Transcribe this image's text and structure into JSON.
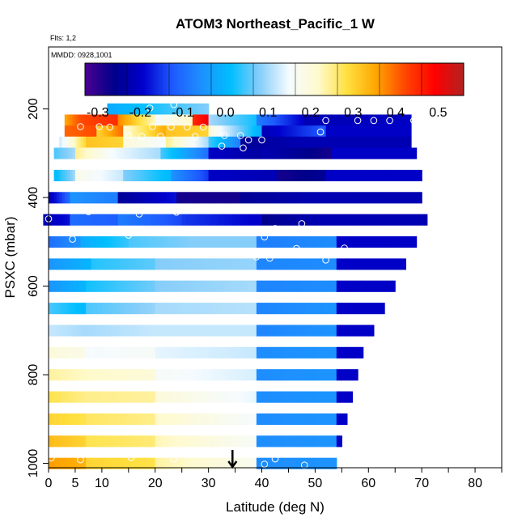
{
  "chart_data": {
    "type": "heatmap",
    "title": "ATOM3 Northeast_Pacific_1 W",
    "flights_text": "Flts: 1,2",
    "dates_text": "MMDD: 0928,1001",
    "xlabel": "Latitude (deg N)",
    "ylabel": "PSXC (mbar)",
    "xlim": [
      0,
      85
    ],
    "ylim": [
      1010,
      60
    ],
    "x_ticks": [
      0,
      5,
      10,
      20,
      30,
      40,
      50,
      60,
      70,
      80
    ],
    "y_ticks": [
      200,
      400,
      600,
      800,
      1000
    ],
    "colorbar": {
      "range": [
        -0.33,
        0.56
      ],
      "ticks": [
        -0.3,
        -0.2,
        -0.1,
        0.0,
        0.1,
        0.2,
        0.3,
        0.4,
        0.5
      ],
      "tick_labels": [
        "-0.3",
        "-0.2",
        "-0.1",
        "0.0",
        "0.1",
        "0.2",
        "0.3",
        "0.4",
        "0.5"
      ],
      "colors": [
        "#4b0092",
        "#00008b",
        "#0000cd",
        "#1e5aff",
        "#1e90ff",
        "#00bfff",
        "#87cefa",
        "#f5fbff",
        "#fffacd",
        "#ffe040",
        "#ffa500",
        "#ff4500",
        "#ff0000",
        "#b22222"
      ]
    },
    "arrow_latitude": 34.5,
    "rows": [
      {
        "p": 200,
        "segments": [
          [
            11,
            30,
            -0.02,
            0.08
          ]
        ]
      },
      {
        "p": 225,
        "segments": [
          [
            3,
            6,
            0.35,
            0.42
          ],
          [
            6,
            13,
            0.42,
            0.45
          ],
          [
            13,
            20,
            0.38,
            0.22
          ],
          [
            20,
            27,
            0.15,
            0.22
          ],
          [
            27,
            30,
            0.45,
            0.5
          ],
          [
            30,
            39,
            0.1,
            0.02
          ],
          [
            39,
            48,
            -0.08,
            -0.2
          ],
          [
            48,
            68,
            -0.22,
            -0.2
          ]
        ]
      },
      {
        "p": 250,
        "segments": [
          [
            3,
            9,
            0.4,
            0.42
          ],
          [
            9,
            14,
            0.3,
            0.4
          ],
          [
            14,
            22,
            0.2,
            0.35
          ],
          [
            22,
            30,
            0.32,
            0.3
          ],
          [
            30,
            40,
            0.2,
            -0.02
          ],
          [
            40,
            52,
            -0.22,
            -0.12
          ],
          [
            52,
            68,
            -0.2,
            -0.2
          ]
        ]
      },
      {
        "p": 275,
        "segments": [
          [
            2,
            7,
            0.12,
            0.3
          ],
          [
            7,
            14,
            0.32,
            0.3
          ],
          [
            14,
            22,
            0.2,
            0.15
          ],
          [
            22,
            30,
            0.25,
            0.1
          ],
          [
            30,
            36,
            0.05,
            -0.08
          ],
          [
            36,
            48,
            -0.25,
            -0.22
          ],
          [
            48,
            68,
            -0.22,
            -0.22
          ]
        ]
      },
      {
        "p": 300,
        "segments": [
          [
            1,
            5,
            0.05,
            0.1
          ],
          [
            5,
            12,
            0.25,
            0.15
          ],
          [
            12,
            21,
            0.15,
            0.1
          ],
          [
            21,
            30,
            0.05,
            -0.1
          ],
          [
            30,
            40,
            -0.2,
            -0.24
          ],
          [
            40,
            53,
            -0.22,
            -0.28
          ],
          [
            53,
            69,
            -0.2,
            -0.2
          ]
        ]
      },
      {
        "p": 350,
        "segments": [
          [
            1,
            5,
            0.0,
            0.1
          ],
          [
            5,
            14,
            0.18,
            0.12
          ],
          [
            14,
            23,
            0.08,
            0.0
          ],
          [
            23,
            30,
            -0.05,
            -0.15
          ],
          [
            30,
            43,
            -0.2,
            -0.22
          ],
          [
            43,
            52,
            -0.28,
            -0.25
          ],
          [
            52,
            70,
            -0.2,
            -0.2
          ]
        ]
      },
      {
        "p": 400,
        "segments": [
          [
            0,
            4,
            -0.22,
            -0.1
          ],
          [
            4,
            13,
            -0.05,
            -0.08
          ],
          [
            13,
            24,
            -0.25,
            -0.18
          ],
          [
            24,
            36,
            -0.28,
            -0.28
          ],
          [
            36,
            51,
            -0.25,
            -0.22
          ],
          [
            51,
            70,
            -0.22,
            -0.22
          ]
        ]
      },
      {
        "p": 450,
        "segments": [
          [
            -1,
            4,
            -0.22,
            -0.18
          ],
          [
            4,
            13,
            -0.1,
            -0.12
          ],
          [
            13,
            25,
            -0.08,
            -0.14
          ],
          [
            25,
            40,
            -0.15,
            -0.2
          ],
          [
            40,
            51,
            -0.26,
            -0.22
          ],
          [
            51,
            71,
            -0.22,
            -0.22
          ]
        ]
      },
      {
        "p": 500,
        "segments": [
          [
            0,
            6,
            -0.1,
            -0.05
          ],
          [
            6,
            15,
            -0.02,
            0.04
          ],
          [
            15,
            27,
            0.05,
            0.08
          ],
          [
            27,
            39,
            0.08,
            0.08
          ],
          [
            39,
            54,
            -0.08,
            -0.06
          ],
          [
            54,
            69,
            -0.2,
            -0.2
          ]
        ]
      },
      {
        "p": 550,
        "segments": [
          [
            0,
            8,
            -0.05,
            0.0
          ],
          [
            8,
            20,
            0.03,
            0.06
          ],
          [
            20,
            39,
            0.08,
            0.09
          ],
          [
            39,
            54,
            -0.07,
            -0.06
          ],
          [
            54,
            67,
            -0.2,
            -0.2
          ]
        ]
      },
      {
        "p": 600,
        "segments": [
          [
            0,
            7,
            -0.05,
            0.0
          ],
          [
            7,
            20,
            0.02,
            0.07
          ],
          [
            20,
            39,
            0.08,
            0.1
          ],
          [
            39,
            54,
            -0.07,
            -0.06
          ],
          [
            54,
            65,
            -0.2,
            -0.2
          ]
        ]
      },
      {
        "p": 650,
        "segments": [
          [
            0,
            7,
            0.05,
            0.0
          ],
          [
            7,
            20,
            0.05,
            0.09
          ],
          [
            20,
            39,
            0.1,
            0.11
          ],
          [
            39,
            54,
            -0.07,
            -0.05
          ],
          [
            54,
            63,
            -0.2,
            -0.2
          ]
        ]
      },
      {
        "p": 700,
        "segments": [
          [
            0,
            7,
            0.12,
            0.1
          ],
          [
            7,
            20,
            0.1,
            0.12
          ],
          [
            20,
            39,
            0.12,
            0.12
          ],
          [
            39,
            54,
            -0.07,
            -0.05
          ],
          [
            54,
            61,
            -0.2,
            -0.2
          ]
        ]
      },
      {
        "p": 750,
        "segments": [
          [
            0,
            7,
            0.2,
            0.18
          ],
          [
            7,
            20,
            0.15,
            0.16
          ],
          [
            20,
            39,
            0.14,
            0.12
          ],
          [
            39,
            54,
            -0.06,
            -0.05
          ],
          [
            54,
            59,
            -0.2,
            -0.2
          ]
        ]
      },
      {
        "p": 800,
        "segments": [
          [
            0,
            7,
            0.24,
            0.22
          ],
          [
            7,
            20,
            0.22,
            0.2
          ],
          [
            20,
            39,
            0.16,
            0.13
          ],
          [
            39,
            54,
            -0.06,
            -0.05
          ],
          [
            54,
            58,
            -0.2,
            -0.2
          ]
        ]
      },
      {
        "p": 850,
        "segments": [
          [
            0,
            7,
            0.28,
            0.25
          ],
          [
            7,
            20,
            0.25,
            0.24
          ],
          [
            20,
            39,
            0.2,
            0.14
          ],
          [
            39,
            54,
            -0.06,
            -0.05
          ],
          [
            54,
            57,
            -0.2,
            -0.2
          ]
        ]
      },
      {
        "p": 900,
        "segments": [
          [
            0,
            7,
            0.3,
            0.28
          ],
          [
            7,
            20,
            0.27,
            0.25
          ],
          [
            20,
            39,
            0.22,
            0.15
          ],
          [
            39,
            54,
            -0.06,
            -0.05
          ],
          [
            54,
            56,
            -0.2,
            -0.2
          ]
        ]
      },
      {
        "p": 950,
        "segments": [
          [
            0,
            7,
            0.33,
            0.3
          ],
          [
            7,
            20,
            0.28,
            0.26
          ],
          [
            20,
            39,
            0.23,
            0.16
          ],
          [
            39,
            54,
            -0.06,
            -0.05
          ],
          [
            54,
            55,
            -0.2,
            -0.2
          ]
        ]
      },
      {
        "p": 1000,
        "segments": [
          [
            0,
            7,
            0.36,
            0.34
          ],
          [
            7,
            20,
            0.3,
            0.28
          ],
          [
            20,
            39,
            0.24,
            0.17
          ],
          [
            39,
            54,
            -0.06,
            -0.05
          ]
        ]
      }
    ],
    "points": [
      {
        "x": 23.5,
        "y": 190
      },
      {
        "x": 19.0,
        "y": 198
      },
      {
        "x": 2.0,
        "y": 240
      },
      {
        "x": 6.0,
        "y": 240
      },
      {
        "x": 9.5,
        "y": 240
      },
      {
        "x": 11.5,
        "y": 241
      },
      {
        "x": 19.5,
        "y": 240
      },
      {
        "x": 23.0,
        "y": 241
      },
      {
        "x": 26.0,
        "y": 241
      },
      {
        "x": 29.0,
        "y": 241
      },
      {
        "x": 52.0,
        "y": 226
      },
      {
        "x": 58.0,
        "y": 226
      },
      {
        "x": 61.0,
        "y": 226
      },
      {
        "x": 64.0,
        "y": 226
      },
      {
        "x": 68.5,
        "y": 226
      },
      {
        "x": 15.0,
        "y": 260
      },
      {
        "x": 17.5,
        "y": 262
      },
      {
        "x": 21.0,
        "y": 262
      },
      {
        "x": 27.5,
        "y": 262
      },
      {
        "x": 33.0,
        "y": 260
      },
      {
        "x": 36.0,
        "y": 260
      },
      {
        "x": 51.0,
        "y": 252
      },
      {
        "x": 37.5,
        "y": 270
      },
      {
        "x": 32.5,
        "y": 284
      },
      {
        "x": 36.5,
        "y": 288
      },
      {
        "x": 40.0,
        "y": 270
      },
      {
        "x": 7.5,
        "y": 432
      },
      {
        "x": 17.0,
        "y": 437
      },
      {
        "x": 24.0,
        "y": 433
      },
      {
        "x": 0.0,
        "y": 448
      },
      {
        "x": 47.5,
        "y": 459
      },
      {
        "x": 42.5,
        "y": 470
      },
      {
        "x": 22.0,
        "y": 474
      },
      {
        "x": 71.0,
        "y": 482
      },
      {
        "x": 15.0,
        "y": 485
      },
      {
        "x": 40.5,
        "y": 489
      },
      {
        "x": 4.5,
        "y": 494
      },
      {
        "x": 46.5,
        "y": 515
      },
      {
        "x": 55.5,
        "y": 514
      },
      {
        "x": 39.0,
        "y": 534
      },
      {
        "x": 41.5,
        "y": 537
      },
      {
        "x": 52.0,
        "y": 541
      },
      {
        "x": 0.5,
        "y": 988
      },
      {
        "x": 6.0,
        "y": 992
      },
      {
        "x": 15.5,
        "y": 987
      },
      {
        "x": 23.5,
        "y": 990
      },
      {
        "x": 42.5,
        "y": 990
      },
      {
        "x": 40.5,
        "y": 1002
      },
      {
        "x": 48.0,
        "y": 1004
      }
    ]
  }
}
